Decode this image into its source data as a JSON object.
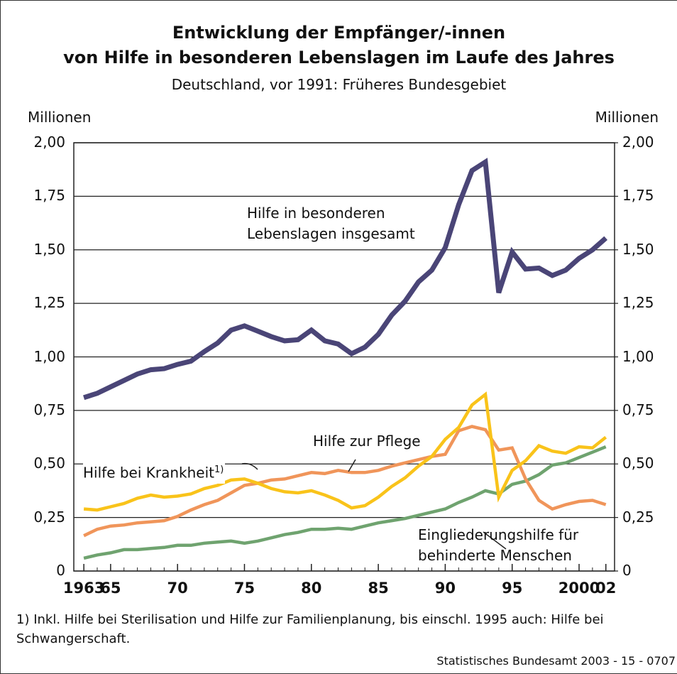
{
  "chart_data": {
    "type": "line",
    "title": [
      "Entwicklung der Empfänger/-innen",
      "von Hilfe in besonderen Lebenslagen im Laufe des Jahres"
    ],
    "subtitle": "Deutschland, vor 1991: Früheres Bundesgebiet",
    "y_label": "Millionen",
    "y2_label": "Millionen",
    "x": [
      1963,
      1964,
      1965,
      1966,
      1967,
      1968,
      1969,
      1970,
      1971,
      1972,
      1973,
      1974,
      1975,
      1976,
      1977,
      1978,
      1979,
      1980,
      1981,
      1982,
      1983,
      1984,
      1985,
      1986,
      1987,
      1988,
      1989,
      1990,
      1991,
      1992,
      1993,
      1994,
      1995,
      1996,
      1997,
      1998,
      1999,
      2000,
      2001,
      2002
    ],
    "xlim": [
      1962.25,
      2002.65
    ],
    "xticks": [
      1963,
      {
        "value": 1965,
        "label": "65"
      },
      {
        "value": 1970,
        "label": "70"
      },
      {
        "value": 1975,
        "label": "75"
      },
      {
        "value": 1980,
        "label": "80"
      },
      {
        "value": 1985,
        "label": "85"
      },
      {
        "value": 1990,
        "label": "90"
      },
      {
        "value": 1995,
        "label": "95"
      },
      2000,
      {
        "value": 2002,
        "label": "02"
      }
    ],
    "ylim": [
      0,
      2
    ],
    "yticks": [
      0,
      {
        "value": 0.25,
        "label": "0,25"
      },
      {
        "value": 0.5,
        "label": "0,50"
      },
      {
        "value": 0.75,
        "label": "0,75"
      },
      {
        "value": 1,
        "label": "1,00"
      },
      {
        "value": 1.25,
        "label": "1,25"
      },
      {
        "value": 1.5,
        "label": "1,50"
      },
      {
        "value": 1.75,
        "label": "1,75"
      },
      {
        "value": 2,
        "label": "2,00"
      }
    ],
    "y2lim": [
      0,
      2
    ],
    "y2ticks": [
      0,
      {
        "value": 0.25,
        "label": "0,25"
      },
      {
        "value": 0.5,
        "label": "0,50"
      },
      {
        "value": 0.75,
        "label": "0,75"
      },
      {
        "value": 1,
        "label": "1,00"
      },
      {
        "value": 1.25,
        "label": "1,25"
      },
      {
        "value": 1.5,
        "label": "1,50"
      },
      {
        "value": 1.75,
        "label": "1,75"
      },
      {
        "value": 2,
        "label": "2,00"
      }
    ],
    "grid": true,
    "series": [
      {
        "name": "Hilfe in besonderen Lebenslagen insgesamt",
        "color": "#4a4577",
        "values": [
          0.81,
          0.83,
          0.86,
          0.89,
          0.92,
          0.94,
          0.945,
          0.965,
          0.98,
          1.025,
          1.065,
          1.125,
          1.145,
          1.12,
          1.095,
          1.075,
          1.08,
          1.125,
          1.075,
          1.06,
          1.015,
          1.045,
          1.105,
          1.195,
          1.26,
          1.35,
          1.405,
          1.51,
          1.71,
          1.87,
          1.91,
          1.3,
          1.49,
          1.41,
          1.415,
          1.38,
          1.405,
          1.46,
          1.5,
          1.555
        ]
      },
      {
        "name": "Hilfe bei Krankheit",
        "name_note": "1)",
        "color": "#f9c31a",
        "values": [
          0.29,
          0.285,
          0.3,
          0.315,
          0.34,
          0.355,
          0.345,
          0.35,
          0.36,
          0.385,
          0.4,
          0.425,
          0.43,
          0.41,
          0.385,
          0.37,
          0.365,
          0.375,
          0.355,
          0.33,
          0.295,
          0.305,
          0.345,
          0.395,
          0.435,
          0.49,
          0.535,
          0.615,
          0.67,
          0.775,
          0.825,
          0.345,
          0.47,
          0.515,
          0.585,
          0.56,
          0.55,
          0.58,
          0.575,
          0.625
        ]
      },
      {
        "name": "Hilfe zur Pflege",
        "color": "#f0955a",
        "values": [
          0.165,
          0.195,
          0.21,
          0.215,
          0.225,
          0.23,
          0.235,
          0.255,
          0.285,
          0.31,
          0.33,
          0.365,
          0.4,
          0.41,
          0.425,
          0.43,
          0.445,
          0.46,
          0.455,
          0.47,
          0.46,
          0.46,
          0.47,
          0.49,
          0.505,
          0.52,
          0.535,
          0.545,
          0.655,
          0.675,
          0.66,
          0.565,
          0.575,
          0.43,
          0.33,
          0.29,
          0.31,
          0.325,
          0.33,
          0.31
        ]
      },
      {
        "name": "Eingliederungshilfe für behinderte Menschen",
        "color": "#6fa36f",
        "values": [
          0.06,
          0.075,
          0.085,
          0.1,
          0.1,
          0.105,
          0.11,
          0.12,
          0.12,
          0.13,
          0.135,
          0.14,
          0.13,
          0.14,
          0.155,
          0.17,
          0.18,
          0.195,
          0.195,
          0.2,
          0.195,
          0.21,
          0.225,
          0.235,
          0.245,
          0.26,
          0.275,
          0.29,
          0.32,
          0.345,
          0.375,
          0.36,
          0.405,
          0.42,
          0.45,
          0.495,
          0.505,
          0.53,
          0.555,
          0.58
        ]
      }
    ],
    "footnote": "1) Inkl. Hilfe bei Sterilisation und Hilfe zur Familienplanung, bis einschl. 1995 auch: Hilfe bei Schwangerschaft.",
    "source": "Statistisches Bundesamt 2003 - 15 - 0707"
  }
}
